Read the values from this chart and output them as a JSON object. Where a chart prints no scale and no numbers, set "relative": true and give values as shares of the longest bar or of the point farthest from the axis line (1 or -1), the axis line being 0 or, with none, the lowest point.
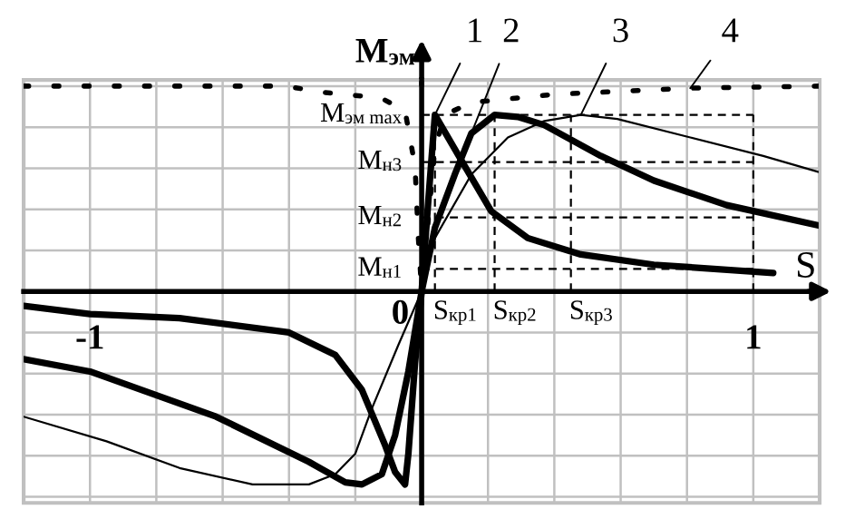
{
  "chart_data": {
    "type": "line",
    "relative": true,
    "xlabel": "S",
    "ylabel": "M$_{эм}$",
    "xlim": [
      -1.2,
      1.2
    ],
    "xticks": [
      {
        "value": -1.2,
        "label": null
      },
      {
        "value": -1.0,
        "label": "-1"
      },
      {
        "value": -0.8,
        "label": null
      },
      {
        "value": -0.6,
        "label": null
      },
      {
        "value": -0.4,
        "label": null
      },
      {
        "value": -0.2,
        "label": null
      },
      {
        "value": 0,
        "label": null
      },
      {
        "value": 0.2,
        "label": null
      },
      {
        "value": 0.4,
        "label": null
      },
      {
        "value": 0.6,
        "label": null
      },
      {
        "value": 0.8,
        "label": null
      },
      1,
      {
        "value": 1.2,
        "label": null
      }
    ],
    "grid": true,
    "legend": false,
    "series": [
      {
        "color": "#000000",
        "line_style": "solid",
        "x": [
          -1.2,
          -1.0,
          -0.73,
          -0.4,
          -0.26,
          -0.18,
          -0.11,
          -0.08,
          -0.05,
          -0.04,
          -0.02,
          0,
          0.02,
          0.04,
          0.13,
          0.21,
          0.32,
          0.48,
          0.7,
          1.06
        ],
        "values": [
          -0.07,
          -0.11,
          -0.13,
          -0.2,
          -0.31,
          -0.48,
          -0.75,
          -0.88,
          -0.94,
          -0.79,
          -0.35,
          0,
          0.44,
          0.86,
          0.61,
          0.39,
          0.26,
          0.18,
          0.13,
          0.09
        ]
      },
      {
        "color": "#000000",
        "line_style": "solid",
        "x": [
          -1.2,
          -1.0,
          -0.62,
          -0.34,
          -0.23,
          -0.18,
          -0.12,
          -0.08,
          -0.04,
          0,
          0.04,
          0.1,
          0.15,
          0.22,
          0.29,
          0.37,
          0.54,
          0.7,
          0.92,
          1.2
        ],
        "values": [
          -0.33,
          -0.39,
          -0.61,
          -0.83,
          -0.93,
          -0.94,
          -0.89,
          -0.7,
          -0.39,
          0,
          0.31,
          0.57,
          0.77,
          0.86,
          0.85,
          0.81,
          0.66,
          0.54,
          0.42,
          0.32
        ]
      },
      {
        "color": "#000000",
        "line_style": "solid",
        "x": [
          -1.2,
          -0.95,
          -0.73,
          -0.51,
          -0.34,
          -0.26,
          -0.2,
          -0.15,
          -0.07,
          0,
          0.04,
          0.15,
          0.26,
          0.37,
          0.48,
          0.59,
          0.81,
          1.03,
          1.2
        ],
        "values": [
          -0.61,
          -0.73,
          -0.86,
          -0.94,
          -0.94,
          -0.89,
          -0.79,
          -0.57,
          -0.26,
          0,
          0.26,
          0.57,
          0.75,
          0.83,
          0.86,
          0.84,
          0.75,
          0.66,
          0.58
        ]
      },
      {
        "color": "#000000",
        "line_style": "dotted",
        "x": [
          -1.2,
          -0.41,
          -0.3,
          -0.23,
          -0.12,
          -0.05,
          -0.02,
          -0.01,
          0,
          0.02,
          0.04,
          0.07,
          0.15,
          0.4,
          0.81,
          1.2
        ],
        "values": [
          1.0,
          1.0,
          0.97,
          0.96,
          0.94,
          0.88,
          0.61,
          0.26,
          0,
          0.35,
          0.7,
          0.86,
          0.92,
          0.96,
          0.99,
          1.0
        ]
      }
    ],
    "ref_lines": [
      {
        "axis": "y",
        "value": 0.86,
        "label": "M$_{эм max}$",
        "line_style": "dashed"
      },
      {
        "axis": "y",
        "value": 0.63,
        "label": "M$_{н3}$",
        "line_style": "dashed"
      },
      {
        "axis": "y",
        "value": 0.36,
        "label": "M$_{н2}$",
        "line_style": "dashed"
      },
      {
        "axis": "y",
        "value": 0.11,
        "label": "M$_{н1}$",
        "line_style": "dashed"
      },
      {
        "axis": "x",
        "value": 0.04,
        "label": "S$_{кр1}$",
        "line_style": "dashed"
      },
      {
        "axis": "x",
        "value": 0.22,
        "label": "S$_{кр2}$",
        "line_style": "dashed"
      },
      {
        "axis": "x",
        "value": 0.45,
        "label": "S$_{кр3}$",
        "line_style": "dashed"
      },
      {
        "axis": "x",
        "value": 1.0,
        "label": null,
        "line_style": "dashed"
      }
    ],
    "annotations": [
      {
        "text": "0",
        "x": 0,
        "y": 0
      },
      {
        "text": "1",
        "x": 0.04,
        "y": 0.86
      },
      {
        "text": "2",
        "x": 0.15,
        "y": 0.77
      },
      {
        "text": "3",
        "x": 0.48,
        "y": 0.86
      },
      {
        "text": "4",
        "x": 0.81,
        "y": 0.99
      }
    ]
  }
}
